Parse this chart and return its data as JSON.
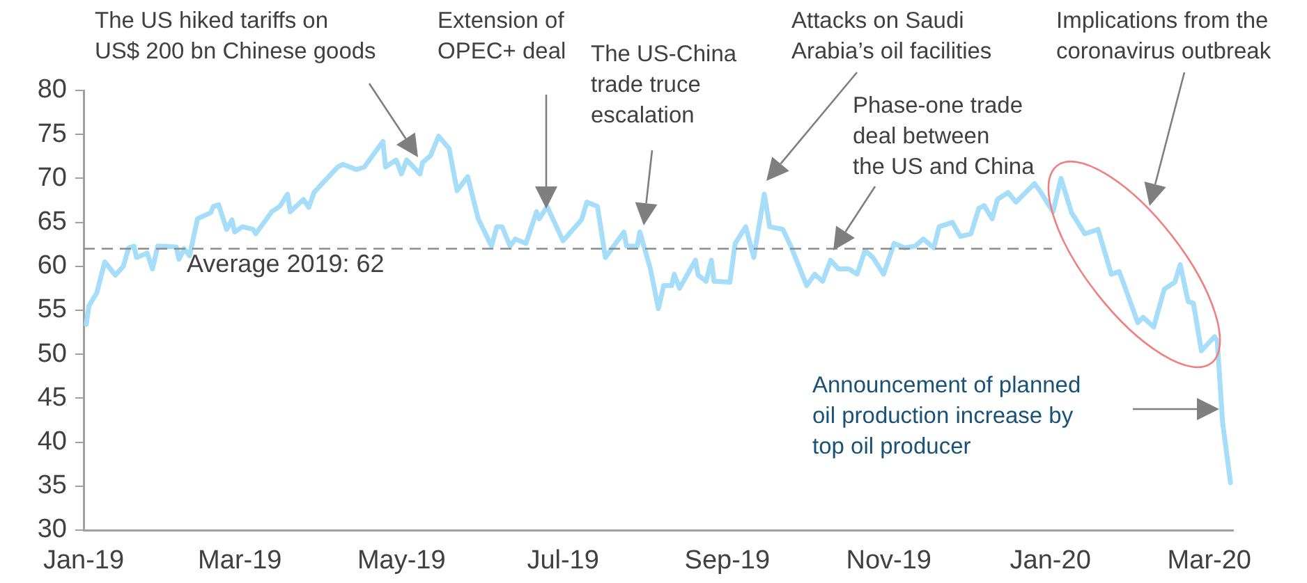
{
  "chart_data": {
    "type": "line",
    "x": [
      "2019-01-02",
      "2019-01-03",
      "2019-01-06",
      "2019-01-09",
      "2019-01-13",
      "2019-01-16",
      "2019-01-18",
      "2019-01-20",
      "2019-01-21",
      "2019-01-25",
      "2019-01-27",
      "2019-01-29",
      "2019-02-05",
      "2019-02-06",
      "2019-02-08",
      "2019-02-10",
      "2019-02-13",
      "2019-02-18",
      "2019-02-19",
      "2019-02-21",
      "2019-02-24",
      "2019-02-26",
      "2019-02-27",
      "2019-03-02",
      "2019-03-06",
      "2019-03-07",
      "2019-03-13",
      "2019-03-16",
      "2019-03-19",
      "2019-03-20",
      "2019-03-25",
      "2019-03-27",
      "2019-03-29",
      "2019-04-02",
      "2019-04-07",
      "2019-04-09",
      "2019-04-14",
      "2019-04-17",
      "2019-04-24",
      "2019-04-25",
      "2019-04-29",
      "2019-05-01",
      "2019-05-03",
      "2019-05-08",
      "2019-05-09",
      "2019-05-12",
      "2019-05-15",
      "2019-05-19",
      "2019-05-22",
      "2019-05-26",
      "2019-05-30",
      "2019-06-04",
      "2019-06-06",
      "2019-06-08",
      "2019-06-11",
      "2019-06-13",
      "2019-06-17",
      "2019-06-21",
      "2019-06-22",
      "2019-06-25",
      "2019-07-01",
      "2019-07-08",
      "2019-07-10",
      "2019-07-14",
      "2019-07-17",
      "2019-07-24",
      "2019-07-25",
      "2019-07-29",
      "2019-07-30",
      "2019-08-03",
      "2019-08-06",
      "2019-08-08",
      "2019-08-11",
      "2019-08-12",
      "2019-08-14",
      "2019-08-20",
      "2019-08-21",
      "2019-08-24",
      "2019-08-26",
      "2019-08-27",
      "2019-09-02",
      "2019-09-04",
      "2019-09-08",
      "2019-09-11",
      "2019-09-15",
      "2019-09-17",
      "2019-09-22",
      "2019-09-25",
      "2019-10-01",
      "2019-10-04",
      "2019-10-07",
      "2019-10-10",
      "2019-10-13",
      "2019-10-17",
      "2019-10-20",
      "2019-10-23",
      "2019-10-26",
      "2019-10-30",
      "2019-11-03",
      "2019-11-07",
      "2019-11-11",
      "2019-11-14",
      "2019-11-18",
      "2019-11-20",
      "2019-11-25",
      "2019-11-28",
      "2019-12-02",
      "2019-12-05",
      "2019-12-07",
      "2019-12-10",
      "2019-12-12",
      "2019-12-16",
      "2019-12-19",
      "2019-12-26",
      "2019-12-28",
      "2020-01-02",
      "2020-01-05",
      "2020-01-09",
      "2020-01-14",
      "2020-01-19",
      "2020-01-24",
      "2020-01-27",
      "2020-02-03",
      "2020-02-05",
      "2020-02-09",
      "2020-02-13",
      "2020-02-17",
      "2020-02-19",
      "2020-02-22",
      "2020-02-24",
      "2020-02-27",
      "2020-03-03",
      "2020-03-04",
      "2020-03-06",
      "2020-03-09"
    ],
    "series": [
      {
        "color": "#a6ddf9",
        "values": [
          53.4,
          55.5,
          57,
          60.5,
          59,
          60,
          62.1,
          62.3,
          61,
          61.5,
          59.7,
          62.3,
          62.2,
          60.8,
          62,
          61.2,
          65.4,
          66.1,
          66.8,
          67,
          64.2,
          65.3,
          63.9,
          64.5,
          64.2,
          63.7,
          66.2,
          66.8,
          68.2,
          66.2,
          67.6,
          66.7,
          68.4,
          69.7,
          71.3,
          71.6,
          71,
          71.3,
          74.2,
          71.3,
          72.1,
          70.5,
          72.1,
          70.5,
          71.8,
          72.6,
          74.8,
          73.4,
          68.6,
          70.2,
          65.4,
          62.3,
          64.5,
          64.5,
          62.3,
          63.1,
          62.6,
          66.2,
          65.4,
          66.8,
          62.9,
          65.3,
          67.3,
          66.8,
          61,
          63.9,
          62.3,
          62.3,
          63.9,
          59.7,
          55.2,
          57.8,
          57.8,
          59.1,
          57.5,
          60.7,
          59,
          58.3,
          60.7,
          58.3,
          58.2,
          62.6,
          64.5,
          61,
          68.2,
          64.5,
          64.2,
          62.3,
          57.8,
          59.1,
          58.3,
          60.7,
          59.7,
          59.7,
          59.1,
          61.8,
          61,
          59.1,
          62.6,
          62.1,
          62.3,
          63.1,
          62.1,
          64.5,
          65,
          63.4,
          63.7,
          66.6,
          66.9,
          65.4,
          67.6,
          68.4,
          67.3,
          69.4,
          68.6,
          66.2,
          70,
          66.1,
          63.7,
          64.2,
          59.1,
          59.4,
          53.6,
          54.2,
          53.1,
          57.4,
          58.2,
          60.2,
          56,
          55.8,
          50.4,
          52,
          51.5,
          42.3,
          35.4
        ]
      }
    ],
    "xlim": [
      "2019-01-01",
      "2020-03-10"
    ],
    "xticks": [
      {
        "value": "2019-01-01",
        "label": "Jan-19"
      },
      {
        "value": "2019-03-01",
        "label": "Mar-19"
      },
      {
        "value": "2019-05-01",
        "label": "May-19"
      },
      {
        "value": "2019-07-01",
        "label": "Jul-19"
      },
      {
        "value": "2019-09-01",
        "label": "Sep-19"
      },
      {
        "value": "2019-11-01",
        "label": "Nov-19"
      },
      {
        "value": "2020-01-01",
        "label": "Jan-20"
      },
      {
        "value": "2020-03-01",
        "label": "Mar-20"
      }
    ],
    "ylim": [
      30,
      80
    ],
    "yticks": [
      30,
      35,
      40,
      45,
      50,
      55,
      60,
      65,
      70,
      75,
      80
    ],
    "grid": false,
    "legend": false,
    "marker": "none",
    "line_style": "solid",
    "ref_lines": [
      {
        "axis": "y",
        "value": 62,
        "label": "Average 2019: 62",
        "color": "#8c8c8c",
        "line_style": "dashed"
      }
    ],
    "annotations": [
      "The US hiked tariffs on\nUS$ 200 bn Chinese goods",
      "Extension of\nOPEC+ deal",
      "The US-China\ntrade truce\nescalation",
      "Attacks on Saudi\nArabia’s oil facilities",
      "Phase-one trade\ndeal between\nthe US and China",
      "Implications from the\ncoronavirus outbreak",
      "Announcement of planned\noil production increase by\ntop oil producer"
    ]
  }
}
